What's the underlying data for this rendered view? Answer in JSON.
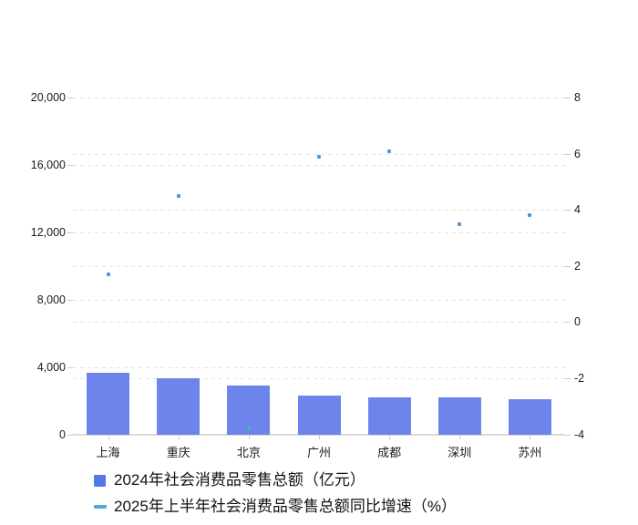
{
  "chart_data": {
    "type": "combo",
    "categories": [
      "上海",
      "重庆",
      "北京",
      "广州",
      "成都",
      "深圳",
      "苏州"
    ],
    "series": [
      {
        "name": "2024年社会消费品零售总额（亿元）",
        "type": "bar",
        "y_axis": "left",
        "color": "#6d85ea",
        "values": [
          3670,
          3330,
          2910,
          2300,
          2220,
          2200,
          2060
        ]
      },
      {
        "name": "2025年上半年社会消费品零售总额同比增速（%）",
        "type": "scatter",
        "y_axis": "right",
        "color": "#4e97d6",
        "values": [
          1.7,
          4.5,
          -3.8,
          5.9,
          6.1,
          3.5,
          3.8
        ]
      }
    ],
    "left_axis": {
      "min": 0,
      "max": 20000,
      "tick_labels": [
        "20,000",
        "16,000",
        "12,000",
        "8,000",
        "4,000",
        "0"
      ]
    },
    "right_axis": {
      "min": -4,
      "max": 8,
      "tick_labels": [
        "8",
        "6",
        "4",
        "2",
        "0",
        "-2",
        "-4"
      ]
    },
    "grid": {
      "horizontal_dashed": true
    },
    "legend_position": "bottom-left",
    "overlap_dot_color": "#35b8b8"
  },
  "legend": {
    "items": [
      {
        "label": "2024年社会消费品零售总额（亿元）",
        "marker": "square",
        "color": "#5477e8"
      },
      {
        "label": "2025年上半年社会消费品零售总额同比增速（%）",
        "marker": "dash",
        "color": "#58a8da"
      }
    ]
  }
}
